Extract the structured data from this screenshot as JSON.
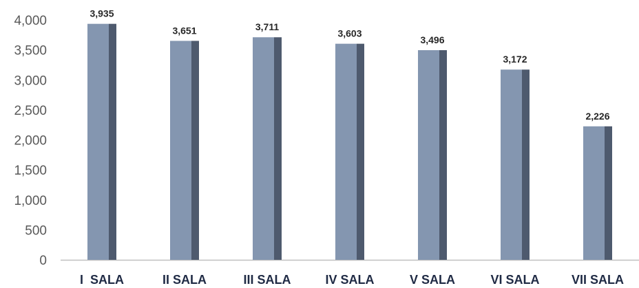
{
  "chart_data": {
    "type": "bar",
    "title": "",
    "xlabel": "",
    "ylabel": "",
    "categories": [
      "I  SALA",
      "II SALA",
      "III SALA",
      "IV SALA",
      "V SALA",
      "VI SALA",
      "VII SALA"
    ],
    "values": [
      3935,
      3651,
      3711,
      3603,
      3496,
      3172,
      2226
    ],
    "value_labels": [
      "3,935",
      "3,651",
      "3,711",
      "3,603",
      "3,496",
      "3,172",
      "2,226"
    ],
    "ylim": [
      0,
      4000
    ],
    "y_ticks": [
      0,
      500,
      1000,
      1500,
      2000,
      2500,
      3000,
      3500,
      4000
    ],
    "y_tick_labels": [
      "0",
      "500",
      "1,000",
      "1,500",
      "2,000",
      "2,500",
      "3,000",
      "3,500",
      "4,000"
    ],
    "grid": false,
    "legend": "none",
    "colors": {
      "bar_face": "#8496b0",
      "bar_side": "#4e5a6e",
      "axis": "#bfbfbf"
    }
  }
}
